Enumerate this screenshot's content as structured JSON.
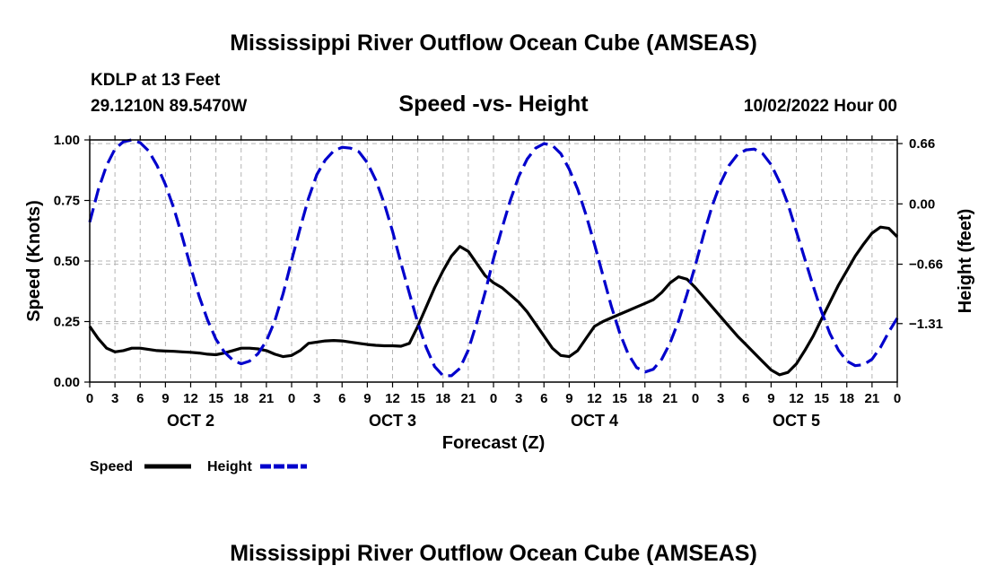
{
  "header": {
    "title": "Mississippi River Outflow Ocean Cube (AMSEAS)",
    "station": "KDLP at 13 Feet",
    "coords": "29.1210N  89.5470W",
    "date": "10/02/2022 Hour 00",
    "footer_title": "Mississippi River Outflow Ocean Cube (AMSEAS)"
  },
  "chart_data": {
    "type": "line",
    "title": "Speed -vs- Height",
    "xlabel": "Forecast (Z)",
    "ylabel_left": "Speed (Knots)",
    "ylabel_right": "Height (feet)",
    "x_hours_range": [
      0,
      96
    ],
    "x_tick_labels": [
      "0",
      "3",
      "6",
      "9",
      "12",
      "15",
      "18",
      "21",
      "0",
      "3",
      "6",
      "9",
      "12",
      "15",
      "18",
      "21",
      "0",
      "3",
      "6",
      "9",
      "12",
      "15",
      "18",
      "21",
      "0",
      "3",
      "6",
      "9",
      "12",
      "15",
      "18",
      "21",
      "0"
    ],
    "day_labels": [
      {
        "label": "OCT 2",
        "center_hour": 12
      },
      {
        "label": "OCT 3",
        "center_hour": 36
      },
      {
        "label": "OCT 4",
        "center_hour": 60
      },
      {
        "label": "OCT 5",
        "center_hour": 84
      }
    ],
    "y_left": {
      "ylim": [
        0,
        1
      ],
      "ticks": [
        0,
        0.25,
        0.5,
        0.75,
        1.0
      ],
      "tick_labels": [
        "0.00",
        "0.25",
        "0.50",
        "0.75",
        "1.00"
      ]
    },
    "y_right": {
      "ylim": [
        -1.95,
        0.7
      ],
      "ticks": [
        0.66,
        0.0,
        -0.66,
        -1.31
      ],
      "tick_labels": [
        "0.66",
        "0.00",
        "−0.66",
        "−1.31"
      ]
    },
    "grid": true,
    "series": [
      {
        "name": "Speed",
        "axis": "left",
        "color": "#000000",
        "style": "solid",
        "hours": [
          0,
          1,
          2,
          3,
          4,
          5,
          6,
          7,
          8,
          9,
          10,
          11,
          12,
          13,
          14,
          15,
          16,
          17,
          18,
          19,
          20,
          21,
          22,
          23,
          24,
          25,
          26,
          27,
          28,
          29,
          30,
          31,
          32,
          33,
          34,
          35,
          36,
          37,
          38,
          39,
          40,
          41,
          42,
          43,
          44,
          45,
          46,
          47,
          48,
          49,
          50,
          51,
          52,
          53,
          54,
          55,
          56,
          57,
          58,
          59,
          60,
          61,
          62,
          63,
          64,
          65,
          66,
          67,
          68,
          69,
          70,
          71,
          72,
          73,
          74,
          75,
          76,
          77,
          78,
          79,
          80,
          81,
          82,
          83,
          84,
          85,
          86,
          87,
          88,
          89,
          90,
          91,
          92,
          93,
          94,
          95,
          96
        ],
        "values": [
          0.23,
          0.18,
          0.14,
          0.125,
          0.13,
          0.14,
          0.14,
          0.135,
          0.13,
          0.128,
          0.127,
          0.125,
          0.123,
          0.12,
          0.115,
          0.113,
          0.12,
          0.13,
          0.14,
          0.14,
          0.137,
          0.13,
          0.115,
          0.105,
          0.11,
          0.13,
          0.16,
          0.165,
          0.17,
          0.172,
          0.17,
          0.165,
          0.16,
          0.155,
          0.152,
          0.15,
          0.15,
          0.148,
          0.16,
          0.23,
          0.31,
          0.39,
          0.46,
          0.52,
          0.56,
          0.54,
          0.49,
          0.44,
          0.41,
          0.39,
          0.36,
          0.33,
          0.29,
          0.24,
          0.19,
          0.14,
          0.11,
          0.105,
          0.13,
          0.18,
          0.23,
          0.25,
          0.265,
          0.28,
          0.295,
          0.31,
          0.325,
          0.34,
          0.37,
          0.41,
          0.435,
          0.425,
          0.39,
          0.35,
          0.31,
          0.27,
          0.23,
          0.19,
          0.155,
          0.12,
          0.085,
          0.05,
          0.03,
          0.04,
          0.075,
          0.13,
          0.19,
          0.26,
          0.33,
          0.4,
          0.46,
          0.52,
          0.57,
          0.615,
          0.64,
          0.635,
          0.6
        ]
      },
      {
        "name": "Height",
        "axis": "right",
        "color": "#0000CC",
        "style": "dashed",
        "hours": [
          0,
          1,
          2,
          3,
          4,
          5,
          6,
          7,
          8,
          9,
          10,
          11,
          12,
          13,
          14,
          15,
          16,
          17,
          18,
          19,
          20,
          21,
          22,
          23,
          24,
          25,
          26,
          27,
          28,
          29,
          30,
          31,
          32,
          33,
          34,
          35,
          36,
          37,
          38,
          39,
          40,
          41,
          42,
          43,
          44,
          45,
          46,
          47,
          48,
          49,
          50,
          51,
          52,
          53,
          54,
          55,
          56,
          57,
          58,
          59,
          60,
          61,
          62,
          63,
          64,
          65,
          66,
          67,
          68,
          69,
          70,
          71,
          72,
          73,
          74,
          75,
          76,
          77,
          78,
          79,
          80,
          81,
          82,
          83,
          84,
          85,
          86,
          87,
          88,
          89,
          90,
          91,
          92,
          93,
          94,
          95,
          96
        ],
        "values": [
          -0.2,
          0.15,
          0.42,
          0.6,
          0.68,
          0.7,
          0.67,
          0.58,
          0.42,
          0.21,
          -0.05,
          -0.36,
          -0.69,
          -1.01,
          -1.27,
          -1.48,
          -1.62,
          -1.71,
          -1.75,
          -1.72,
          -1.64,
          -1.5,
          -1.28,
          -0.98,
          -0.62,
          -0.27,
          0.06,
          0.32,
          0.48,
          0.58,
          0.62,
          0.61,
          0.57,
          0.45,
          0.26,
          0.01,
          -0.3,
          -0.65,
          -0.98,
          -1.3,
          -1.57,
          -1.78,
          -1.88,
          -1.88,
          -1.8,
          -1.6,
          -1.3,
          -0.97,
          -0.6,
          -0.27,
          0.04,
          0.3,
          0.49,
          0.61,
          0.66,
          0.64,
          0.55,
          0.38,
          0.16,
          -0.12,
          -0.44,
          -0.78,
          -1.12,
          -1.41,
          -1.64,
          -1.79,
          -1.84,
          -1.81,
          -1.7,
          -1.52,
          -1.28,
          -0.99,
          -0.67,
          -0.33,
          -0.02,
          0.23,
          0.42,
          0.54,
          0.59,
          0.6,
          0.55,
          0.43,
          0.24,
          0.0,
          -0.3,
          -0.6,
          -0.9,
          -1.18,
          -1.42,
          -1.6,
          -1.72,
          -1.77,
          -1.76,
          -1.7,
          -1.57,
          -1.4,
          -1.25
        ]
      }
    ],
    "legend": [
      {
        "label": "Speed",
        "color": "#000000",
        "style": "solid"
      },
      {
        "label": "Height",
        "color": "#0000CC",
        "style": "dashed"
      }
    ],
    "legend_placement": "bottom-left"
  }
}
